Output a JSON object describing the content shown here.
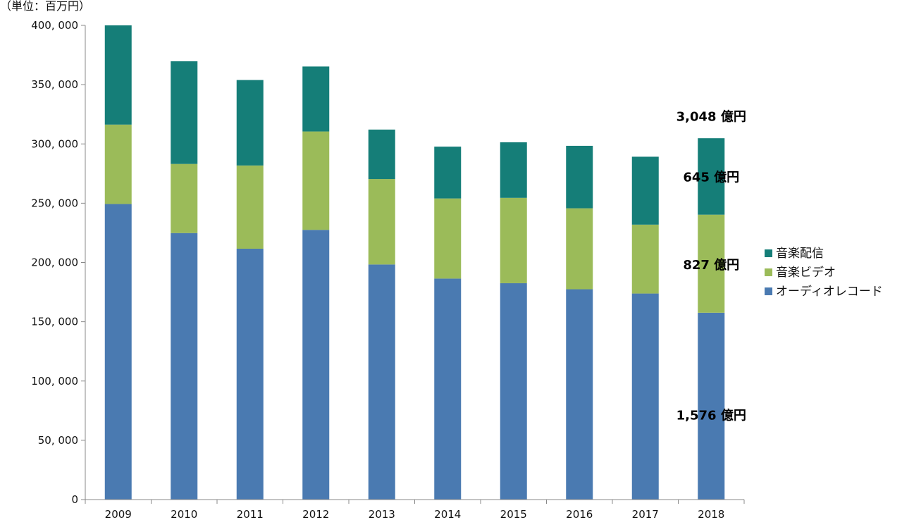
{
  "chart_data": {
    "type": "bar",
    "stacked": true,
    "unit_label": "（単位：百万円）",
    "categories": [
      "2009",
      "2010",
      "2011",
      "2012",
      "2013",
      "2014",
      "2015",
      "2016",
      "2017",
      "2018"
    ],
    "series": [
      {
        "name": "オーディオレコード",
        "color": "#4a7ab1",
        "values": [
          249300,
          224800,
          211600,
          227500,
          198300,
          186400,
          182500,
          177400,
          173800,
          157600
        ]
      },
      {
        "name": "音楽ビデオ",
        "color": "#9bbb59",
        "values": [
          67000,
          58300,
          70200,
          83000,
          72100,
          67600,
          72000,
          68300,
          58100,
          82700
        ]
      },
      {
        "name": "音楽配信",
        "color": "#157e78",
        "values": [
          83700,
          86600,
          72100,
          54800,
          41700,
          43700,
          46900,
          52700,
          57300,
          64500
        ]
      }
    ],
    "ylim": [
      0,
      400000
    ],
    "yticks": [
      {
        "value": 0,
        "label": "0"
      },
      {
        "value": 50000,
        "label": "50, 000"
      },
      {
        "value": 100000,
        "label": "100, 000"
      },
      {
        "value": 150000,
        "label": "150, 000"
      },
      {
        "value": 200000,
        "label": "200, 000"
      },
      {
        "value": 250000,
        "label": "250, 000"
      },
      {
        "value": 300000,
        "label": "300, 000"
      },
      {
        "value": 350000,
        "label": "350, 000"
      },
      {
        "value": 400000,
        "label": "400, 000"
      }
    ],
    "grid": false,
    "legend_position": "right",
    "annotations": [
      {
        "text": "3,048 億円",
        "value": 323000
      },
      {
        "text": "645 億円",
        "value": 272000
      },
      {
        "text": "827 億円",
        "value": 198000
      },
      {
        "text": "1,576 億円",
        "value": 71000
      }
    ]
  }
}
